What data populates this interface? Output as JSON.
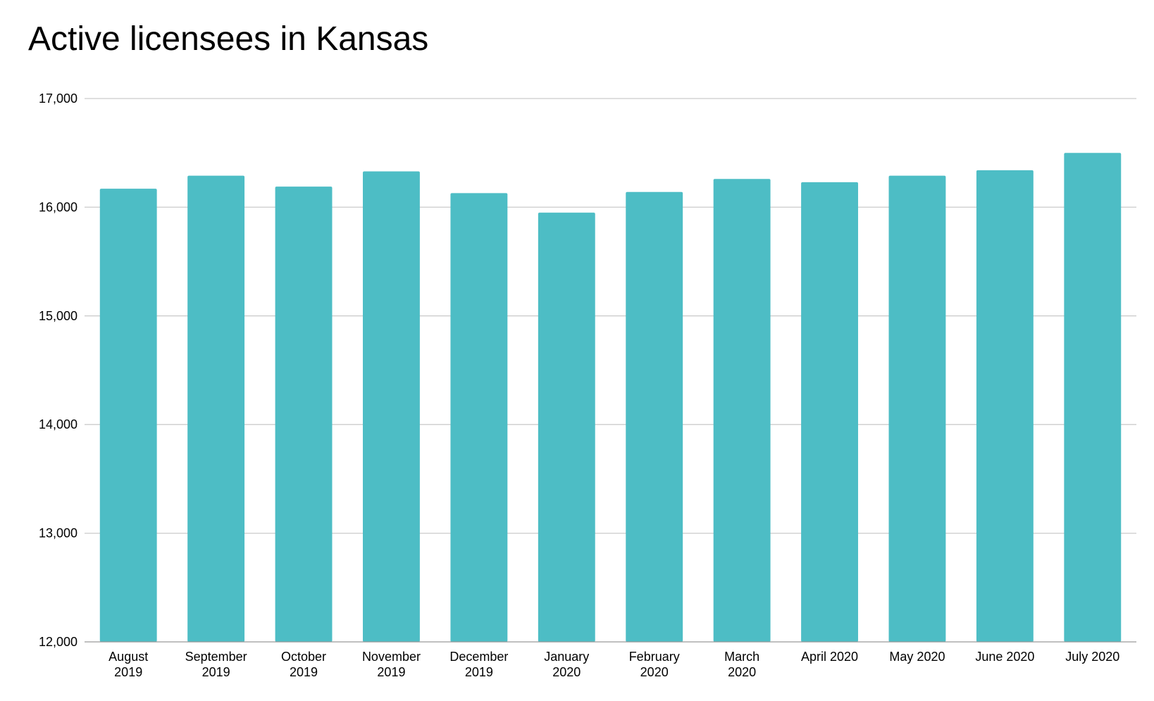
{
  "chart_data": {
    "type": "bar",
    "title": "Active licensees in Kansas",
    "xlabel": "",
    "ylabel": "",
    "categories": [
      [
        "August",
        "2019"
      ],
      [
        "September",
        "2019"
      ],
      [
        "October",
        "2019"
      ],
      [
        "November",
        "2019"
      ],
      [
        "December",
        "2019"
      ],
      [
        "January",
        "2020"
      ],
      [
        "February",
        "2020"
      ],
      [
        "March",
        "2020"
      ],
      [
        "April 2020"
      ],
      [
        "May 2020"
      ],
      [
        "June 2020"
      ],
      [
        "July 2020"
      ]
    ],
    "values": [
      16170,
      16290,
      16190,
      16330,
      16130,
      15950,
      16140,
      16260,
      16230,
      16290,
      16340,
      16500
    ],
    "ylim": [
      12000,
      17000
    ],
    "yticks": [
      12000,
      13000,
      14000,
      15000,
      16000,
      17000
    ],
    "ytick_labels": [
      "12,000",
      "13,000",
      "14,000",
      "15,000",
      "16,000",
      "17,000"
    ],
    "grid": true,
    "legend": "none",
    "colors": {
      "bar": "#4dbdc5",
      "grid": "#cccccc",
      "axis": "#999999"
    }
  }
}
